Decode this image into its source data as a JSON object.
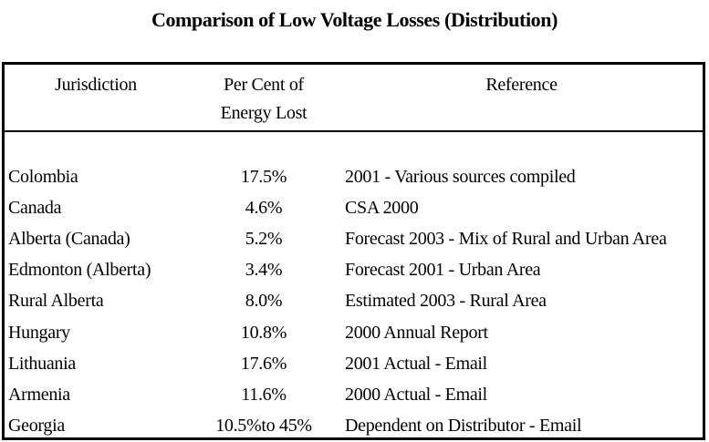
{
  "title": "Comparison of Low Voltage Losses (Distribution)",
  "table": {
    "headers": {
      "jurisdiction": "Jurisdiction",
      "percent_line1": "Per Cent of",
      "percent_line2": "Energy Lost",
      "reference": "Reference"
    },
    "rows": [
      {
        "jurisdiction": "Colombia",
        "percent": "17.5%",
        "reference": "2001 - Various sources compiled"
      },
      {
        "jurisdiction": "Canada",
        "percent": "4.6%",
        "reference": "CSA 2000"
      },
      {
        "jurisdiction": "Alberta (Canada)",
        "percent": "5.2%",
        "reference": "Forecast 2003 - Mix of Rural and Urban Area"
      },
      {
        "jurisdiction": "Edmonton (Alberta)",
        "percent": "3.4%",
        "reference": "Forecast 2001 - Urban Area"
      },
      {
        "jurisdiction": "Rural Alberta",
        "percent": "8.0%",
        "reference": "Estimated 2003 - Rural Area"
      },
      {
        "jurisdiction": "Hungary",
        "percent": "10.8%",
        "reference": "2000 Annual Report"
      },
      {
        "jurisdiction": "Lithuania",
        "percent": "17.6%",
        "reference": "2001 Actual - Email"
      },
      {
        "jurisdiction": "Armenia",
        "percent": "11.6%",
        "reference": "2000 Actual - Email"
      },
      {
        "jurisdiction": "Georgia",
        "percent": "10.5%to 45%",
        "reference": "Dependent on Distributor - Email"
      }
    ]
  },
  "colors": {
    "text": "#000000",
    "background": "#ffffff",
    "border": "#000000"
  }
}
